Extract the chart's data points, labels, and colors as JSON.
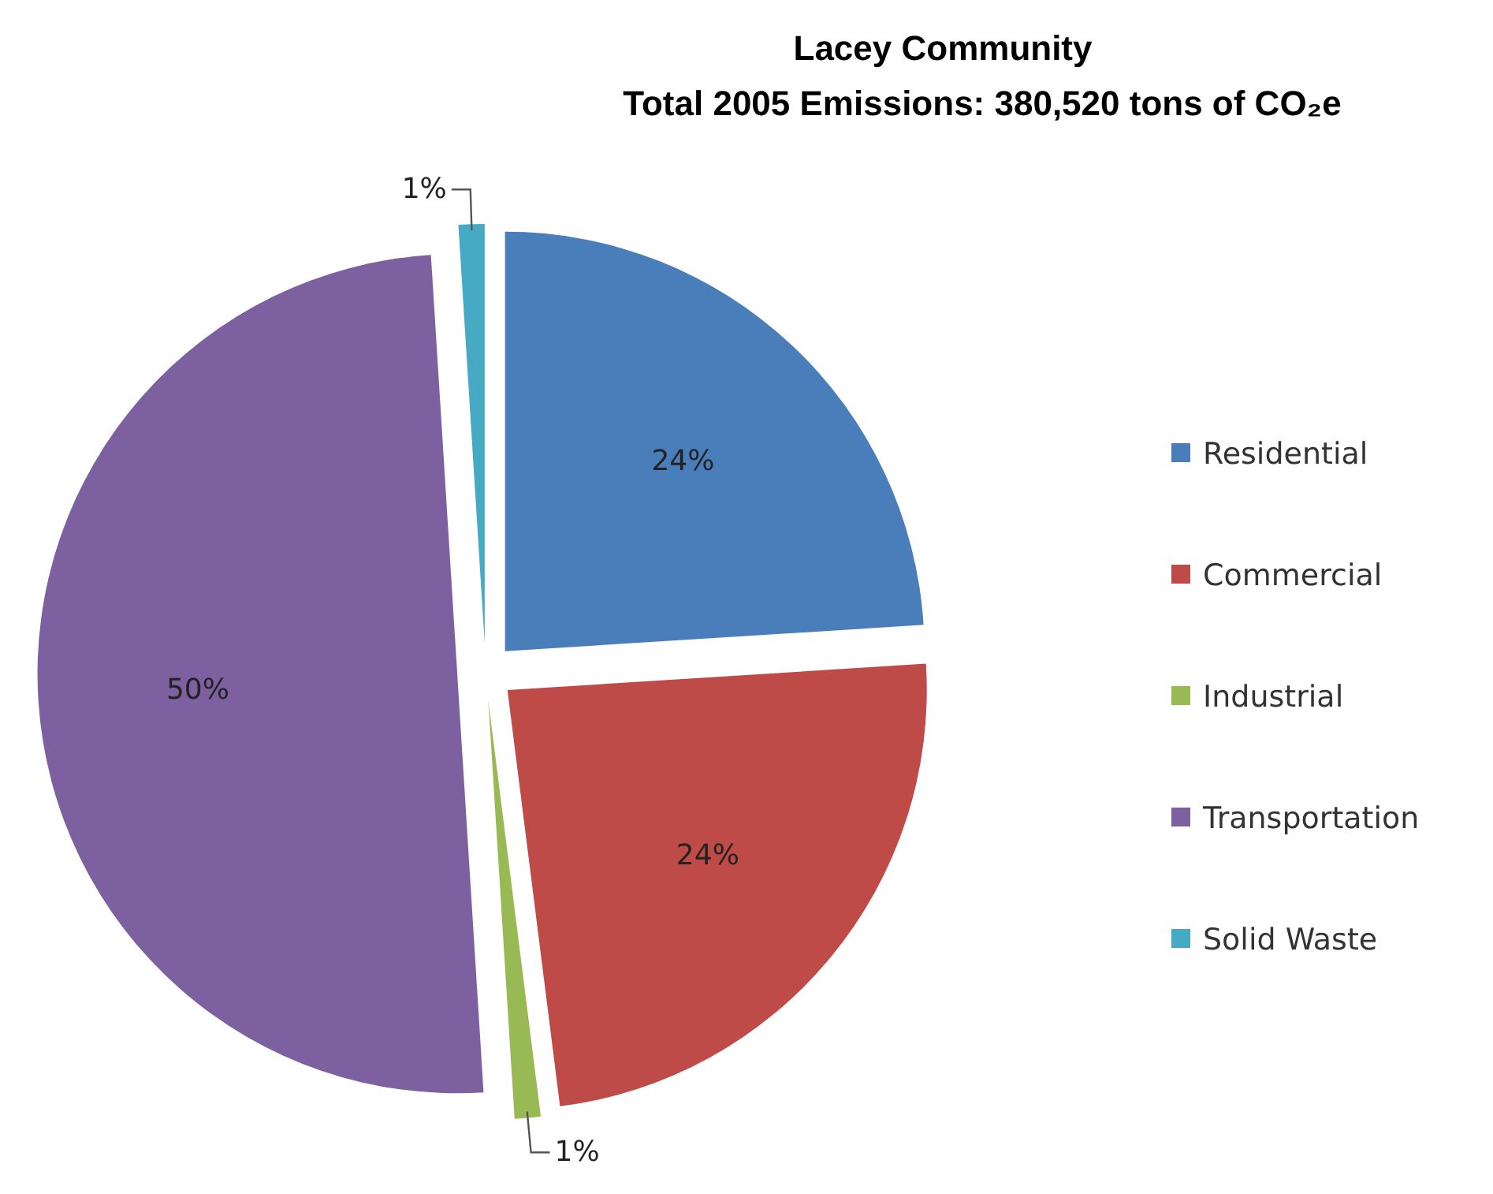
{
  "chart_data": {
    "type": "pie",
    "title": "Lacey Community",
    "subtitle": "Total 2005 Emissions:  380,520 tons of CO₂e",
    "categories": [
      "Residential",
      "Commercial",
      "Industrial",
      "Transportation",
      "Solid Waste"
    ],
    "values": [
      24,
      24,
      1,
      50,
      1
    ],
    "value_labels": [
      "24%",
      "24%",
      "1%",
      "50%",
      "1%"
    ],
    "colors": [
      "#4a7ebb",
      "#be4b48",
      "#98b954",
      "#7d60a0",
      "#46aac5"
    ],
    "legend": "right"
  }
}
